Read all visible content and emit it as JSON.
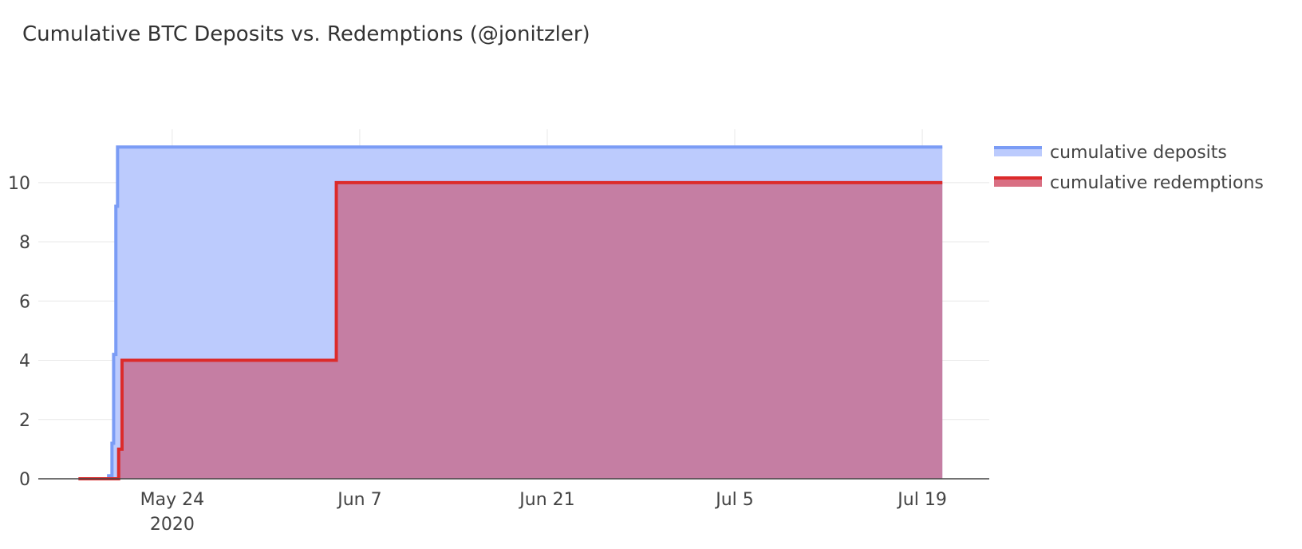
{
  "chart_data": {
    "type": "area",
    "title": "Cumulative BTC Deposits vs. Redemptions (@jonitzler)",
    "xlabel": "",
    "ylabel": "",
    "x_range": [
      "2020-05-14",
      "2020-07-24"
    ],
    "ylim": [
      0,
      11.8
    ],
    "x_ticks": [
      {
        "date": "2020-05-24",
        "label": "May 24",
        "sublabel": "2020"
      },
      {
        "date": "2020-06-07",
        "label": "Jun 7",
        "sublabel": ""
      },
      {
        "date": "2020-06-21",
        "label": "Jun 21",
        "sublabel": ""
      },
      {
        "date": "2020-07-05",
        "label": "Jul 5",
        "sublabel": ""
      },
      {
        "date": "2020-07-19",
        "label": "Jul 19",
        "sublabel": ""
      }
    ],
    "y_ticks": [
      0,
      2,
      4,
      6,
      8,
      10
    ],
    "grid": true,
    "legend_position": "top-right",
    "series": [
      {
        "name": "cumulative deposits",
        "line_color": "#7b9cf5",
        "fill_color": "#bccbfd",
        "fill_opacity": 1,
        "step": true,
        "points": [
          {
            "x": "2020-05-17 00:00",
            "y": 0
          },
          {
            "x": "2020-05-19 06:00",
            "y": 0.1
          },
          {
            "x": "2020-05-19 12:00",
            "y": 1.2
          },
          {
            "x": "2020-05-19 15:00",
            "y": 4.2
          },
          {
            "x": "2020-05-19 19:00",
            "y": 9.2
          },
          {
            "x": "2020-05-19 22:00",
            "y": 11.2
          },
          {
            "x": "2020-07-20 12:00",
            "y": 11.2
          }
        ]
      },
      {
        "name": "cumulative redemptions",
        "line_color": "#dc2b2b",
        "fill_color": "#cc3f5a",
        "fill_opacity": 0.55,
        "step": true,
        "points": [
          {
            "x": "2020-05-17 00:00",
            "y": 0
          },
          {
            "x": "2020-05-20 00:00",
            "y": 1
          },
          {
            "x": "2020-05-20 06:00",
            "y": 4
          },
          {
            "x": "2020-06-05 06:00",
            "y": 10
          },
          {
            "x": "2020-07-20 12:00",
            "y": 10
          }
        ]
      }
    ]
  }
}
